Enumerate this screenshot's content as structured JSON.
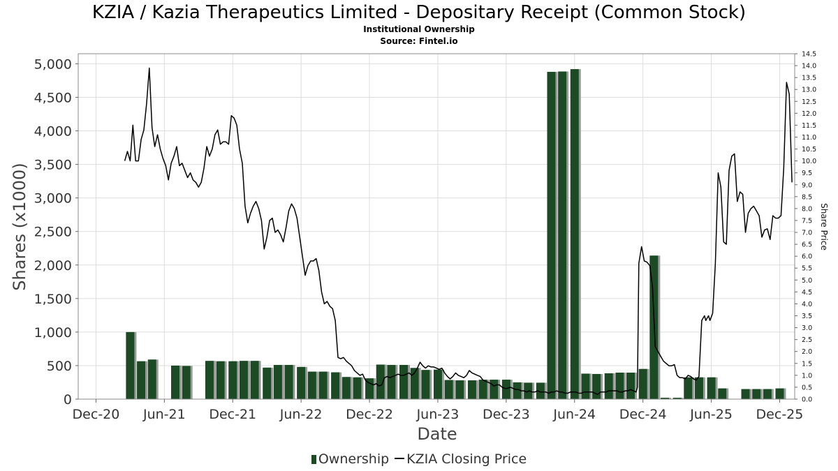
{
  "title": "KZIA / Kazia Therapeutics Limited - Depositary Receipt (Common Stock)",
  "subtitle": "Institutional Ownership",
  "source": "Source: Fintel.io",
  "colors": {
    "bar": "#1b4a25",
    "bar_shadow": "#9a9a9a",
    "line": "#000000",
    "grid": "#dddddd",
    "plot_border": "#888888"
  },
  "legend": {
    "bars": "Ownership",
    "line": "KZIA Closing Price"
  },
  "chart_data": {
    "type": "bar+line",
    "xlabel": "Date",
    "ylabel": "Shares (x1000)",
    "ylabel_right": "Share Price",
    "x_range": [
      2020.79,
      2026.03
    ],
    "y_left_lim": [
      0,
      5150
    ],
    "y_right_lim": [
      0,
      14.5
    ],
    "x_ticks": [
      {
        "label": "Dec-20",
        "x": 2020.92
      },
      {
        "label": "Jun-21",
        "x": 2021.42
      },
      {
        "label": "Dec-21",
        "x": 2021.92
      },
      {
        "label": "Jun-22",
        "x": 2022.42
      },
      {
        "label": "Dec-22",
        "x": 2022.92
      },
      {
        "label": "Jun-23",
        "x": 2023.42
      },
      {
        "label": "Dec-23",
        "x": 2023.92
      },
      {
        "label": "Jun-24",
        "x": 2024.42
      },
      {
        "label": "Dec-24",
        "x": 2024.92
      },
      {
        "label": "Jun-25",
        "x": 2025.42
      },
      {
        "label": "Dec-25",
        "x": 2025.92
      }
    ],
    "y_left_ticks": [
      {
        "label": "0",
        "v": 0
      },
      {
        "label": "500",
        "v": 500
      },
      {
        "label": "1,000",
        "v": 1000
      },
      {
        "label": "1,500",
        "v": 1500
      },
      {
        "label": "2,000",
        "v": 2000
      },
      {
        "label": "2,500",
        "v": 2500
      },
      {
        "label": "3,000",
        "v": 3000
      },
      {
        "label": "3,500",
        "v": 3500
      },
      {
        "label": "4,000",
        "v": 4000
      },
      {
        "label": "4,500",
        "v": 4500
      },
      {
        "label": "5,000",
        "v": 5000
      }
    ],
    "y_right_ticks": [
      "0.0",
      "0.5",
      "1.0",
      "1.5",
      "2.0",
      "2.5",
      "3.0",
      "3.5",
      "4.0",
      "4.5",
      "5.0",
      "5.5",
      "6.0",
      "6.5",
      "7.0",
      "7.5",
      "8.0",
      "8.5",
      "9.0",
      "9.5",
      "10.0",
      "10.5",
      "11.0",
      "11.5",
      "12.0",
      "12.5",
      "13.0",
      "13.5",
      "14.0",
      "14.5"
    ],
    "ownership": [
      {
        "x": 2021.17,
        "v": 1000
      },
      {
        "x": 2021.25,
        "v": 565
      },
      {
        "x": 2021.33,
        "v": 590
      },
      {
        "x": 2021.5,
        "v": 500
      },
      {
        "x": 2021.58,
        "v": 495
      },
      {
        "x": 2021.75,
        "v": 570
      },
      {
        "x": 2021.83,
        "v": 565
      },
      {
        "x": 2021.92,
        "v": 565
      },
      {
        "x": 2022.0,
        "v": 570
      },
      {
        "x": 2022.08,
        "v": 570
      },
      {
        "x": 2022.17,
        "v": 470
      },
      {
        "x": 2022.25,
        "v": 510
      },
      {
        "x": 2022.33,
        "v": 510
      },
      {
        "x": 2022.42,
        "v": 480
      },
      {
        "x": 2022.5,
        "v": 410
      },
      {
        "x": 2022.58,
        "v": 410
      },
      {
        "x": 2022.67,
        "v": 400
      },
      {
        "x": 2022.75,
        "v": 330
      },
      {
        "x": 2022.83,
        "v": 325
      },
      {
        "x": 2022.92,
        "v": 310
      },
      {
        "x": 2023.0,
        "v": 515
      },
      {
        "x": 2023.08,
        "v": 510
      },
      {
        "x": 2023.17,
        "v": 510
      },
      {
        "x": 2023.25,
        "v": 465
      },
      {
        "x": 2023.33,
        "v": 435
      },
      {
        "x": 2023.42,
        "v": 440
      },
      {
        "x": 2023.5,
        "v": 285
      },
      {
        "x": 2023.58,
        "v": 280
      },
      {
        "x": 2023.67,
        "v": 280
      },
      {
        "x": 2023.75,
        "v": 290
      },
      {
        "x": 2023.83,
        "v": 290
      },
      {
        "x": 2023.92,
        "v": 290
      },
      {
        "x": 2024.0,
        "v": 250
      },
      {
        "x": 2024.08,
        "v": 245
      },
      {
        "x": 2024.17,
        "v": 245
      },
      {
        "x": 2024.25,
        "v": 4880
      },
      {
        "x": 2024.33,
        "v": 4885
      },
      {
        "x": 2024.42,
        "v": 4920
      },
      {
        "x": 2024.5,
        "v": 380
      },
      {
        "x": 2024.58,
        "v": 375
      },
      {
        "x": 2024.67,
        "v": 385
      },
      {
        "x": 2024.75,
        "v": 395
      },
      {
        "x": 2024.83,
        "v": 395
      },
      {
        "x": 2024.92,
        "v": 450
      },
      {
        "x": 2025.0,
        "v": 2140
      },
      {
        "x": 2025.08,
        "v": 20
      },
      {
        "x": 2025.17,
        "v": 20
      },
      {
        "x": 2025.25,
        "v": 325
      },
      {
        "x": 2025.33,
        "v": 325
      },
      {
        "x": 2025.42,
        "v": 325
      },
      {
        "x": 2025.5,
        "v": 160
      },
      {
        "x": 2025.67,
        "v": 150
      },
      {
        "x": 2025.75,
        "v": 150
      },
      {
        "x": 2025.83,
        "v": 150
      },
      {
        "x": 2025.92,
        "v": 160
      }
    ],
    "price": [
      [
        2021.13,
        10.0
      ],
      [
        2021.15,
        10.4
      ],
      [
        2021.17,
        10.0
      ],
      [
        2021.19,
        11.5
      ],
      [
        2021.21,
        10.0
      ],
      [
        2021.23,
        10.0
      ],
      [
        2021.25,
        10.9
      ],
      [
        2021.27,
        11.3
      ],
      [
        2021.29,
        12.4
      ],
      [
        2021.31,
        13.9
      ],
      [
        2021.33,
        11.4
      ],
      [
        2021.35,
        10.6
      ],
      [
        2021.37,
        11.1
      ],
      [
        2021.39,
        10.5
      ],
      [
        2021.41,
        10.1
      ],
      [
        2021.43,
        9.8
      ],
      [
        2021.45,
        9.2
      ],
      [
        2021.47,
        9.9
      ],
      [
        2021.49,
        10.2
      ],
      [
        2021.51,
        10.6
      ],
      [
        2021.53,
        9.8
      ],
      [
        2021.55,
        9.9
      ],
      [
        2021.57,
        9.6
      ],
      [
        2021.59,
        9.3
      ],
      [
        2021.61,
        9.5
      ],
      [
        2021.63,
        9.2
      ],
      [
        2021.65,
        9.1
      ],
      [
        2021.67,
        8.9
      ],
      [
        2021.69,
        9.1
      ],
      [
        2021.71,
        9.7
      ],
      [
        2021.73,
        10.6
      ],
      [
        2021.75,
        10.2
      ],
      [
        2021.77,
        10.5
      ],
      [
        2021.79,
        11.1
      ],
      [
        2021.81,
        11.3
      ],
      [
        2021.83,
        10.7
      ],
      [
        2021.85,
        10.8
      ],
      [
        2021.87,
        10.8
      ],
      [
        2021.89,
        10.7
      ],
      [
        2021.91,
        11.9
      ],
      [
        2021.93,
        11.8
      ],
      [
        2021.95,
        11.5
      ],
      [
        2021.97,
        10.5
      ],
      [
        2021.99,
        9.9
      ],
      [
        2022.01,
        8.1
      ],
      [
        2022.03,
        7.4
      ],
      [
        2022.05,
        7.8
      ],
      [
        2022.07,
        8.1
      ],
      [
        2022.09,
        8.3
      ],
      [
        2022.11,
        8.0
      ],
      [
        2022.13,
        7.5
      ],
      [
        2022.15,
        6.3
      ],
      [
        2022.17,
        6.8
      ],
      [
        2022.19,
        7.5
      ],
      [
        2022.21,
        7.6
      ],
      [
        2022.23,
        7.0
      ],
      [
        2022.25,
        7.1
      ],
      [
        2022.27,
        6.9
      ],
      [
        2022.29,
        6.6
      ],
      [
        2022.31,
        7.2
      ],
      [
        2022.33,
        7.9
      ],
      [
        2022.35,
        8.2
      ],
      [
        2022.37,
        8.0
      ],
      [
        2022.39,
        7.6
      ],
      [
        2022.41,
        6.8
      ],
      [
        2022.43,
        6.0
      ],
      [
        2022.45,
        5.2
      ],
      [
        2022.47,
        5.6
      ],
      [
        2022.49,
        5.8
      ],
      [
        2022.51,
        5.8
      ],
      [
        2022.53,
        5.9
      ],
      [
        2022.55,
        5.4
      ],
      [
        2022.57,
        4.5
      ],
      [
        2022.59,
        4.0
      ],
      [
        2022.61,
        4.1
      ],
      [
        2022.63,
        3.9
      ],
      [
        2022.65,
        3.8
      ],
      [
        2022.67,
        3.3
      ],
      [
        2022.69,
        1.75
      ],
      [
        2022.71,
        1.7
      ],
      [
        2022.73,
        1.75
      ],
      [
        2022.75,
        1.6
      ],
      [
        2022.77,
        1.5
      ],
      [
        2022.79,
        1.4
      ],
      [
        2022.81,
        1.2
      ],
      [
        2022.83,
        1.1
      ],
      [
        2022.85,
        1.0
      ],
      [
        2022.87,
        1.05
      ],
      [
        2022.89,
        0.8
      ],
      [
        2022.91,
        0.7
      ],
      [
        2022.93,
        0.65
      ],
      [
        2022.95,
        0.6
      ],
      [
        2022.97,
        0.65
      ],
      [
        2022.99,
        0.55
      ],
      [
        2023.01,
        0.6
      ],
      [
        2023.03,
        0.9
      ],
      [
        2023.05,
        0.95
      ],
      [
        2023.07,
        0.9
      ],
      [
        2023.09,
        0.95
      ],
      [
        2023.11,
        1.0
      ],
      [
        2023.13,
        1.05
      ],
      [
        2023.15,
        1.0
      ],
      [
        2023.17,
        1.0
      ],
      [
        2023.19,
        1.05
      ],
      [
        2023.21,
        1.1
      ],
      [
        2023.23,
        1.0
      ],
      [
        2023.25,
        1.1
      ],
      [
        2023.27,
        1.3
      ],
      [
        2023.29,
        1.55
      ],
      [
        2023.31,
        1.4
      ],
      [
        2023.33,
        1.3
      ],
      [
        2023.35,
        1.4
      ],
      [
        2023.37,
        1.35
      ],
      [
        2023.39,
        1.35
      ],
      [
        2023.41,
        1.3
      ],
      [
        2023.43,
        1.25
      ],
      [
        2023.45,
        1.3
      ],
      [
        2023.47,
        1.1
      ],
      [
        2023.49,
        0.95
      ],
      [
        2023.51,
        0.85
      ],
      [
        2023.53,
        0.95
      ],
      [
        2023.55,
        1.1
      ],
      [
        2023.57,
        1.0
      ],
      [
        2023.59,
        0.95
      ],
      [
        2023.61,
        0.9
      ],
      [
        2023.63,
        1.0
      ],
      [
        2023.65,
        1.2
      ],
      [
        2023.67,
        1.1
      ],
      [
        2023.69,
        1.05
      ],
      [
        2023.71,
        1.0
      ],
      [
        2023.73,
        0.95
      ],
      [
        2023.75,
        0.8
      ],
      [
        2023.77,
        0.75
      ],
      [
        2023.79,
        0.7
      ],
      [
        2023.81,
        0.65
      ],
      [
        2023.83,
        0.55
      ],
      [
        2023.85,
        0.6
      ],
      [
        2023.87,
        0.6
      ],
      [
        2023.89,
        0.5
      ],
      [
        2023.91,
        0.45
      ],
      [
        2023.93,
        0.45
      ],
      [
        2023.95,
        0.5
      ],
      [
        2023.97,
        0.45
      ],
      [
        2023.99,
        0.4
      ],
      [
        2024.01,
        0.4
      ],
      [
        2024.03,
        0.35
      ],
      [
        2024.05,
        0.35
      ],
      [
        2024.07,
        0.3
      ],
      [
        2024.09,
        0.35
      ],
      [
        2024.11,
        0.3
      ],
      [
        2024.13,
        0.3
      ],
      [
        2024.15,
        0.35
      ],
      [
        2024.17,
        0.3
      ],
      [
        2024.19,
        0.3
      ],
      [
        2024.21,
        0.3
      ],
      [
        2024.23,
        0.25
      ],
      [
        2024.25,
        0.3
      ],
      [
        2024.27,
        0.3
      ],
      [
        2024.29,
        0.35
      ],
      [
        2024.31,
        0.3
      ],
      [
        2024.33,
        0.3
      ],
      [
        2024.35,
        0.25
      ],
      [
        2024.37,
        0.25
      ],
      [
        2024.39,
        0.3
      ],
      [
        2024.41,
        0.3
      ],
      [
        2024.43,
        0.3
      ],
      [
        2024.45,
        0.25
      ],
      [
        2024.47,
        0.25
      ],
      [
        2024.49,
        0.3
      ],
      [
        2024.51,
        0.3
      ],
      [
        2024.53,
        0.3
      ],
      [
        2024.55,
        0.3
      ],
      [
        2024.57,
        0.25
      ],
      [
        2024.59,
        0.2
      ],
      [
        2024.61,
        0.3
      ],
      [
        2024.63,
        0.3
      ],
      [
        2024.65,
        0.3
      ],
      [
        2024.67,
        0.35
      ],
      [
        2024.69,
        0.35
      ],
      [
        2024.71,
        0.35
      ],
      [
        2024.73,
        0.35
      ],
      [
        2024.75,
        0.3
      ],
      [
        2024.77,
        0.3
      ],
      [
        2024.79,
        0.35
      ],
      [
        2024.81,
        0.35
      ],
      [
        2024.83,
        0.4
      ],
      [
        2024.85,
        0.35
      ],
      [
        2024.87,
        0.3
      ],
      [
        2024.88,
        0.5
      ],
      [
        2024.89,
        5.7
      ],
      [
        2024.91,
        6.4
      ],
      [
        2024.93,
        5.8
      ],
      [
        2024.95,
        5.75
      ],
      [
        2024.97,
        5.6
      ],
      [
        2024.99,
        4.7
      ],
      [
        2025.01,
        2.2
      ],
      [
        2025.03,
        2.0
      ],
      [
        2025.05,
        1.8
      ],
      [
        2025.07,
        1.6
      ],
      [
        2025.09,
        1.5
      ],
      [
        2025.11,
        1.4
      ],
      [
        2025.13,
        1.4
      ],
      [
        2025.15,
        1.45
      ],
      [
        2025.17,
        1.0
      ],
      [
        2025.19,
        0.9
      ],
      [
        2025.21,
        0.9
      ],
      [
        2025.23,
        0.85
      ],
      [
        2025.25,
        1.0
      ],
      [
        2025.27,
        0.95
      ],
      [
        2025.29,
        0.85
      ],
      [
        2025.31,
        0.8
      ],
      [
        2025.33,
        0.95
      ],
      [
        2025.35,
        3.3
      ],
      [
        2025.37,
        3.5
      ],
      [
        2025.38,
        3.3
      ],
      [
        2025.4,
        3.5
      ],
      [
        2025.41,
        3.3
      ],
      [
        2025.43,
        3.6
      ],
      [
        2025.45,
        5.7
      ],
      [
        2025.47,
        9.5
      ],
      [
        2025.49,
        8.9
      ],
      [
        2025.51,
        6.6
      ],
      [
        2025.53,
        6.5
      ],
      [
        2025.55,
        9.6
      ],
      [
        2025.57,
        10.2
      ],
      [
        2025.59,
        10.3
      ],
      [
        2025.61,
        8.3
      ],
      [
        2025.63,
        8.7
      ],
      [
        2025.65,
        8.6
      ],
      [
        2025.67,
        7.0
      ],
      [
        2025.69,
        7.8
      ],
      [
        2025.71,
        8.0
      ],
      [
        2025.73,
        8.1
      ],
      [
        2025.75,
        7.9
      ],
      [
        2025.77,
        7.7
      ],
      [
        2025.79,
        6.8
      ],
      [
        2025.81,
        7.1
      ],
      [
        2025.83,
        7.15
      ],
      [
        2025.85,
        6.7
      ],
      [
        2025.87,
        7.7
      ],
      [
        2025.89,
        7.6
      ],
      [
        2025.91,
        7.6
      ],
      [
        2025.93,
        7.7
      ],
      [
        2025.95,
        9.7
      ],
      [
        2025.97,
        13.3
      ],
      [
        2025.99,
        12.8
      ],
      [
        2026.01,
        9.1
      ]
    ]
  }
}
